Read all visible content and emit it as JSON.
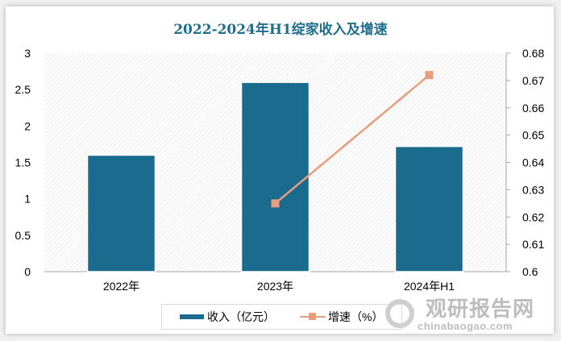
{
  "chart_data": {
    "type": "bar+line",
    "title": "2022-2024年H1绽家收入及增速",
    "categories": [
      "2022年",
      "2023年",
      "2024年H1"
    ],
    "series": [
      {
        "name": "收入（亿元）",
        "type": "bar",
        "axis": "left",
        "values": [
          1.6,
          2.6,
          1.72
        ]
      },
      {
        "name": "增速（%）",
        "type": "line",
        "axis": "right",
        "values": [
          null,
          0.625,
          0.672
        ]
      }
    ],
    "y_left": {
      "ylim": [
        0,
        3
      ],
      "ticks": [
        "0",
        "0.5",
        "1",
        "1.5",
        "2",
        "2.5",
        "3"
      ]
    },
    "y_right": {
      "ylim": [
        0.6,
        0.68
      ],
      "ticks": [
        "0.6",
        "0.61",
        "0.62",
        "0.63",
        "0.64",
        "0.65",
        "0.66",
        "0.67",
        "0.68"
      ]
    },
    "legend": "bottom",
    "colors": {
      "bar": "#1b6b8f",
      "line": "#e89d7c",
      "title": "#1f6e8e"
    }
  },
  "watermark": {
    "name": "观研报告网",
    "url": "chinabaogao.com"
  }
}
